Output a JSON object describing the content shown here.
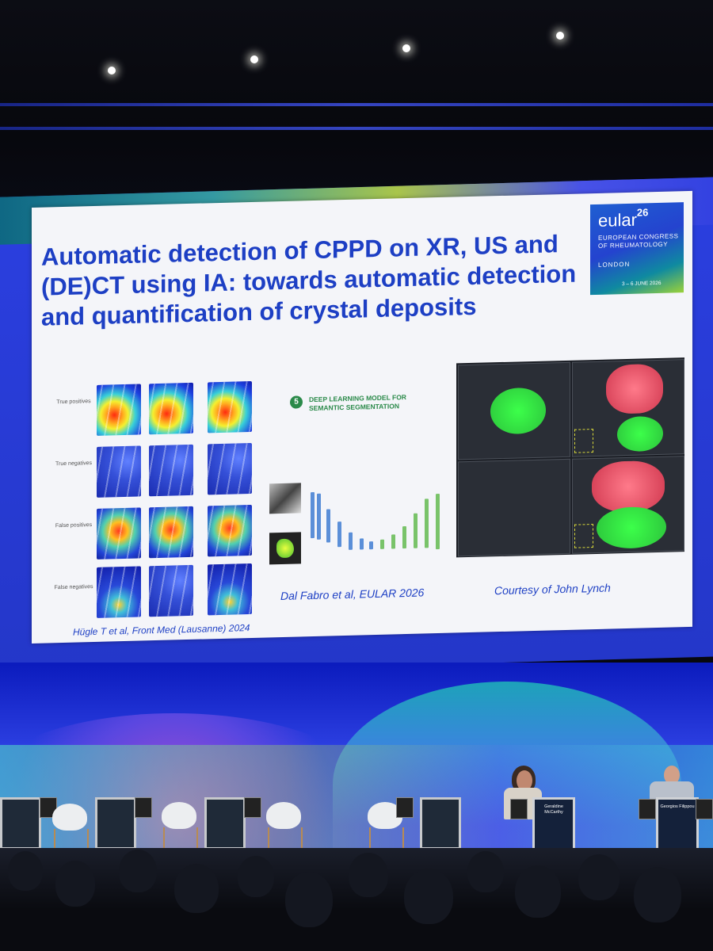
{
  "slide": {
    "title": "Automatic detection of CPPD on XR, US and (DE)CT using IA: towards automatic detection and quantification of crystal deposits",
    "logo": {
      "brand": "eular",
      "edition": "26",
      "subtitle": "EUROPEAN CONGRESS OF RHEUMATOLOGY",
      "city": "LONDON",
      "dates": "3 – 6 JUNE 2026"
    },
    "figure_left": {
      "row_labels": [
        "True positives",
        "True negatives",
        "False positives",
        "False negatives"
      ],
      "citation": "Hügle T et al, Front Med (Lausanne) 2024"
    },
    "figure_middle": {
      "step_number": "5",
      "step_label": "DEEP LEARNING MODEL FOR SEMANTIC SEGMENTATION",
      "citation": "Dal Fabro et al, EULAR 2026"
    },
    "figure_right": {
      "citation": "Courtesy of John Lynch"
    }
  },
  "stage": {
    "nameplates": [
      {
        "name": "Geraldine McCarthy"
      },
      {
        "name": "Georgios Filippou"
      }
    ]
  },
  "colors": {
    "title_blue": "#1d3fc4",
    "stage_blue": "#2b3ee0",
    "step_green": "#2b8a4a"
  }
}
